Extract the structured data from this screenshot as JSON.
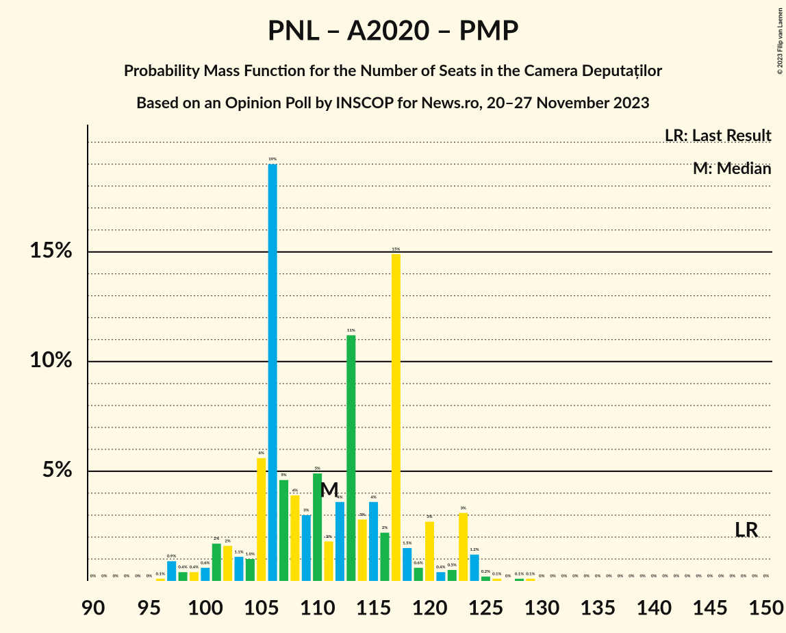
{
  "chart_data": {
    "type": "bar",
    "title": "PNL – A2020 – PMP",
    "subtitle": "Probability Mass Function for the Number of Seats in the Camera Deputaților",
    "subtitle2": "Based on an Opinion Poll by INSCOP for News.ro, 20–27 November 2023",
    "copyright": "© 2023 Filip van Laenen",
    "legend": [
      "LR: Last Result",
      "M: Median"
    ],
    "annotations": [
      {
        "text": "M",
        "x": 111
      },
      {
        "text": "LR",
        "x": 148
      }
    ],
    "x": [
      90,
      91,
      92,
      93,
      94,
      95,
      96,
      97,
      98,
      99,
      100,
      101,
      102,
      103,
      104,
      105,
      106,
      107,
      108,
      109,
      110,
      111,
      112,
      113,
      114,
      115,
      116,
      117,
      118,
      119,
      120,
      121,
      122,
      123,
      124,
      125,
      126,
      127,
      128,
      129,
      130,
      131,
      132,
      133,
      134,
      135,
      136,
      137,
      138,
      139,
      140,
      141,
      142,
      143,
      144,
      145,
      146,
      147,
      148,
      149,
      150
    ],
    "values": [
      0,
      0,
      0,
      0,
      0,
      0,
      0.1,
      0.9,
      0.4,
      0.4,
      0.6,
      1.7,
      1.6,
      1.1,
      1.0,
      5.6,
      19.0,
      4.6,
      3.9,
      3.0,
      4.9,
      1.8,
      3.6,
      11.2,
      2.8,
      3.6,
      2.2,
      14.9,
      1.5,
      0.6,
      2.7,
      0.4,
      0.5,
      3.1,
      1.2,
      0.2,
      0.1,
      0,
      0.1,
      0.1,
      0,
      0,
      0,
      0,
      0,
      0,
      0,
      0,
      0,
      0,
      0,
      0,
      0,
      0,
      0,
      0,
      0,
      0,
      0,
      0,
      0
    ],
    "value_labels": [
      "0%",
      "0%",
      "0%",
      "0%",
      "0%",
      "0%",
      "0.1%",
      "0.9%",
      "0.4%",
      "0.4%",
      "0.6%",
      "2%",
      "2%",
      "1.1%",
      "1.0%",
      "6%",
      "19%",
      "5%",
      "4%",
      "3%",
      "5%",
      "2%",
      "4%",
      "11%",
      "3%",
      "4%",
      "2%",
      "15%",
      "1.5%",
      "0.6%",
      "3%",
      "0.4%",
      "0.5%",
      "3%",
      "1.2%",
      "0.2%",
      "0.1%",
      "0%",
      "0.1%",
      "0.1%",
      "0%",
      "0%",
      "0%",
      "0%",
      "0%",
      "0%",
      "0%",
      "0%",
      "0%",
      "0%",
      "0%",
      "0%",
      "0%",
      "0%",
      "0%",
      "0%",
      "0%",
      "0%",
      "0%",
      "0%",
      "0%"
    ],
    "colors": [
      "#ffdf00",
      "#00a9e4",
      "#19b34b"
    ],
    "xlim": [
      90,
      150
    ],
    "xticks": [
      90,
      95,
      100,
      105,
      110,
      115,
      120,
      125,
      130,
      135,
      140,
      145,
      150
    ],
    "ylim": [
      0,
      20.8
    ],
    "yticks": [
      {
        "value": 5,
        "label": "5%"
      },
      {
        "value": 10,
        "label": "10%"
      },
      {
        "value": 15,
        "label": "15%"
      }
    ],
    "grid": true
  }
}
